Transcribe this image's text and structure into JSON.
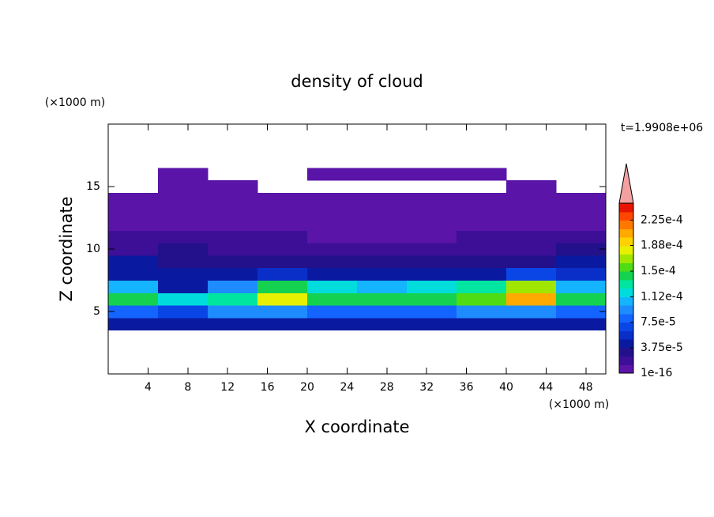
{
  "chart_data": {
    "type": "contour",
    "title": "density of cloud",
    "x_label": "X coordinate",
    "y_label": "Z coordinate",
    "x_unit": "(×1000 m)",
    "y_unit": "(×1000 m)",
    "annotation": "t=1.9908e+06",
    "xlim": [
      0,
      50
    ],
    "ylim": [
      0,
      20
    ],
    "xticks": [
      4,
      8,
      12,
      16,
      20,
      24,
      28,
      32,
      36,
      40,
      44,
      48
    ],
    "yticks": [
      5,
      10,
      15
    ],
    "x": [
      2.5,
      7.5,
      12.5,
      17.5,
      22.5,
      27.5,
      32.5,
      37.5,
      42.5,
      47.5
    ],
    "y": [
      4,
      5,
      6,
      7,
      8,
      9,
      10,
      11,
      12,
      13,
      14,
      15,
      16
    ],
    "z": [
      [
        4e-05,
        5e-05,
        4e-05,
        4e-05,
        4e-05,
        4e-05,
        4e-05,
        4e-05,
        4e-05,
        4e-05
      ],
      [
        8e-05,
        7e-05,
        9e-05,
        9e-05,
        8e-05,
        8e-05,
        8e-05,
        9e-05,
        9e-05,
        8e-05
      ],
      [
        0.00014,
        0.00012,
        0.00013,
        0.00018,
        0.00015,
        0.00014,
        0.00014,
        0.00016,
        0.00021,
        0.00015
      ],
      [
        0.00011,
        5e-05,
        0.0001,
        0.00015,
        0.00012,
        0.00011,
        0.00012,
        0.00013,
        0.00017,
        0.00011
      ],
      [
        5e-05,
        4e-05,
        5e-05,
        6e-05,
        5e-05,
        5e-05,
        5e-05,
        5e-05,
        7e-05,
        6e-05
      ],
      [
        4e-05,
        3.5e-05,
        3e-05,
        3e-05,
        3e-05,
        3e-05,
        3e-05,
        3e-05,
        3.5e-05,
        4e-05
      ],
      [
        2.5e-05,
        3e-05,
        2e-05,
        2e-05,
        1.8e-05,
        1.8e-05,
        1.8e-05,
        2e-05,
        2.5e-05,
        3e-05
      ],
      [
        1.5e-05,
        1.5e-05,
        1.4e-05,
        1.3e-05,
        1.2e-05,
        1.2e-05,
        1.2e-05,
        1.3e-05,
        1.4e-05,
        1.5e-05
      ],
      [
        8e-06,
        9e-06,
        8e-06,
        7e-06,
        6e-06,
        6e-06,
        6e-06,
        7e-06,
        6e-06,
        6e-06
      ],
      [
        5e-06,
        5e-06,
        5e-06,
        5e-06,
        4e-06,
        5e-06,
        4e-06,
        5e-06,
        5e-06,
        5e-06
      ],
      [
        3e-06,
        3e-06,
        3e-06,
        3e-06,
        3e-06,
        3e-06,
        3e-06,
        3e-06,
        3e-06,
        3e-06
      ],
      [
        null,
        2e-06,
        2e-06,
        null,
        null,
        null,
        null,
        null,
        2e-06,
        null
      ],
      [
        null,
        2e-06,
        null,
        null,
        1e-06,
        1e-06,
        1e-06,
        1e-06,
        null,
        null
      ]
    ],
    "clim": [
      1e-16,
      0.00025
    ],
    "colors": [
      "#5b14a8",
      "#3c0f96",
      "#22118a",
      "#0a1aa0",
      "#0a2ec8",
      "#0a46e6",
      "#1464ff",
      "#1e8cff",
      "#14b4ff",
      "#00dcdc",
      "#00e6a0",
      "#14d250",
      "#50dc14",
      "#a0e600",
      "#e6f000",
      "#ffd200",
      "#ffaa00",
      "#ff7800",
      "#ff4600",
      "#e61400"
    ],
    "overflow_color": "#f4a0a0",
    "cticks": [
      1e-16,
      {
        "value": 3.75e-05,
        "label": "3.75e-5"
      },
      {
        "value": 7.5e-05,
        "label": "7.5e-5"
      },
      {
        "value": 0.000112,
        "label": "1.12e-4"
      },
      {
        "value": 0.00015,
        "label": "1.5e-4"
      },
      {
        "value": 0.000188,
        "label": "1.88e-4"
      },
      {
        "value": 0.000225,
        "label": "2.25e-4"
      }
    ]
  }
}
